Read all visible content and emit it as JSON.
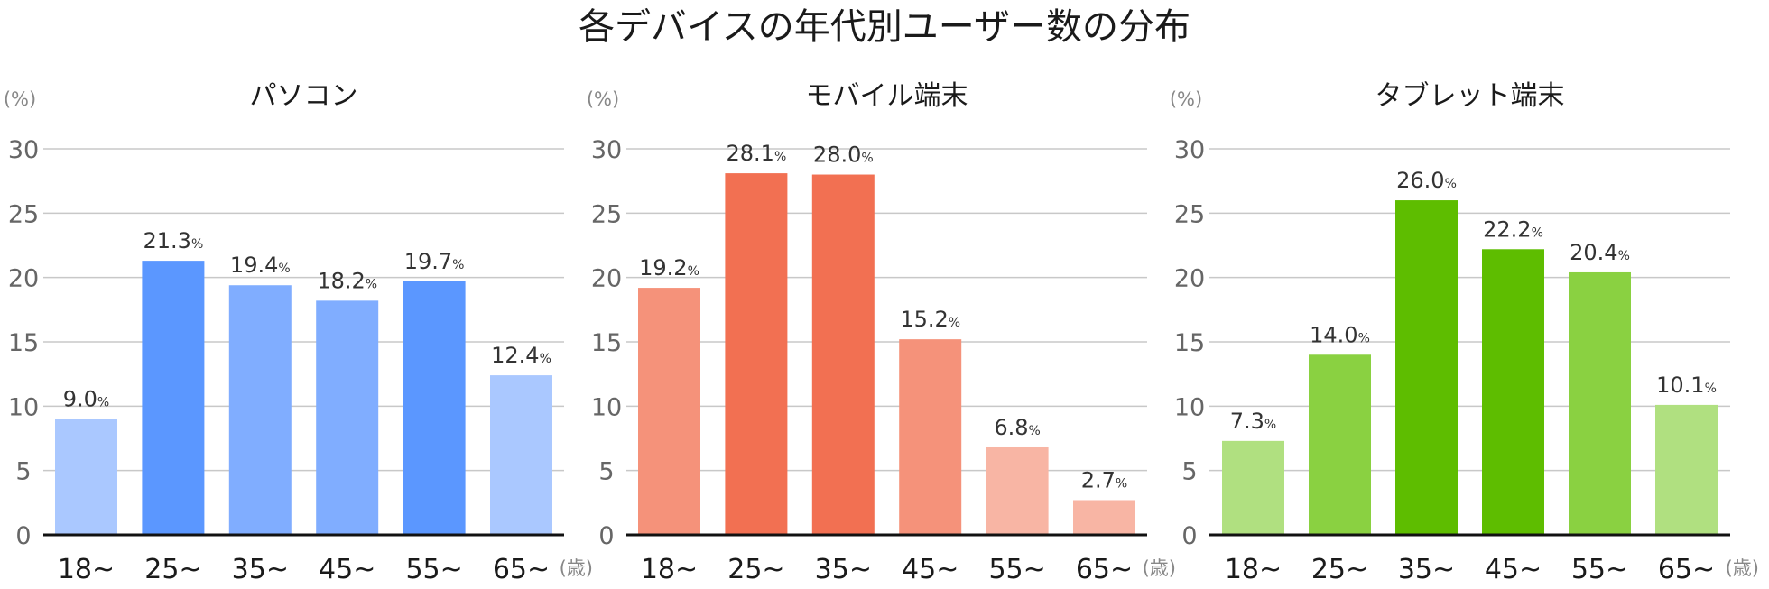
{
  "main_title": "各デバイスの年代別ユーザー数の分布",
  "chart_data": [
    {
      "type": "bar",
      "title": "パソコン",
      "ylabel": "(%)",
      "xlabel": "(歳)",
      "ylim": [
        0,
        30
      ],
      "yticks": [
        0,
        5,
        10,
        15,
        20,
        25,
        30
      ],
      "grid": true,
      "categories": [
        "18~",
        "25~",
        "35~",
        "45~",
        "55~",
        "65~"
      ],
      "values": [
        9.0,
        21.3,
        19.4,
        18.2,
        19.7,
        12.4
      ],
      "value_labels": [
        "9.0",
        "21.3",
        "19.4",
        "18.2",
        "19.7",
        "12.4"
      ],
      "value_unit": "%",
      "colors": [
        "#aac8ff",
        "#5b97ff",
        "#80adff",
        "#80adff",
        "#5b97ff",
        "#aac8ff"
      ]
    },
    {
      "type": "bar",
      "title": "モバイル端末",
      "ylabel": "(%)",
      "xlabel": "(歳)",
      "ylim": [
        0,
        30
      ],
      "yticks": [
        0,
        5,
        10,
        15,
        20,
        25,
        30
      ],
      "grid": true,
      "categories": [
        "18~",
        "25~",
        "35~",
        "45~",
        "55~",
        "65~"
      ],
      "values": [
        19.2,
        28.1,
        28.0,
        15.2,
        6.8,
        2.7
      ],
      "value_labels": [
        "19.2",
        "28.1",
        "28.0",
        "15.2",
        "6.8",
        "2.7"
      ],
      "value_unit": "%",
      "colors": [
        "#f5927a",
        "#f27052",
        "#f27052",
        "#f5927a",
        "#f8b5a4",
        "#f8b5a4"
      ]
    },
    {
      "type": "bar",
      "title": "タブレット端末",
      "ylabel": "(%)",
      "xlabel": "(歳)",
      "ylim": [
        0,
        30
      ],
      "yticks": [
        0,
        5,
        10,
        15,
        20,
        25,
        30
      ],
      "grid": true,
      "categories": [
        "18~",
        "25~",
        "35~",
        "45~",
        "55~",
        "65~"
      ],
      "values": [
        7.3,
        14.0,
        26.0,
        22.2,
        20.4,
        10.1
      ],
      "value_labels": [
        "7.3",
        "14.0",
        "26.0",
        "22.2",
        "20.4",
        "10.1"
      ],
      "value_unit": "%",
      "colors": [
        "#b0e080",
        "#8ad141",
        "#5ebd00",
        "#5ebd00",
        "#8ad141",
        "#b0e080"
      ]
    }
  ]
}
